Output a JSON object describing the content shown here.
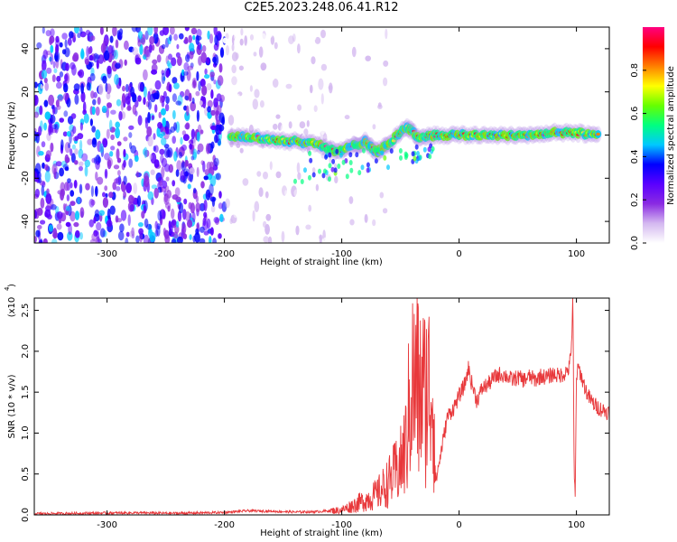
{
  "title": "C2E5.2023.248.06.41.R12",
  "chart_data": [
    {
      "type": "heatmap",
      "xlabel": "Height of straight line (km)",
      "ylabel": "Frequency (Hz)",
      "xlim": [
        -362,
        128
      ],
      "ylim": [
        -50,
        50
      ],
      "x_ticks": [
        -300,
        -200,
        -100,
        0,
        100
      ],
      "x_tick_labels": [
        "-300",
        "-200",
        "-100",
        "0",
        "100"
      ],
      "y_ticks": [
        -40,
        -20,
        0,
        20,
        40
      ],
      "y_tick_labels": [
        "-40",
        "-20",
        "0",
        "20",
        "40"
      ],
      "colorbar": {
        "label": "Normalized spectral amplitude",
        "range": [
          0,
          1
        ],
        "ticks": [
          0.0,
          0.2,
          0.4,
          0.6,
          0.8
        ],
        "tick_labels": [
          "0.0",
          "0.2",
          "0.4",
          "0.6",
          "0.8"
        ],
        "colors": [
          "#ffffff",
          "#d4b8f0",
          "#8a2be2",
          "#5a00ff",
          "#0000ff",
          "#00c8ff",
          "#00ff80",
          "#66ff00",
          "#ffff00",
          "#ff8000",
          "#ff0000",
          "#ff0080"
        ]
      },
      "regions": [
        {
          "description_x": [
            -362,
            -200
          ],
          "freq": [
            -50,
            50
          ],
          "amplitude": 0.15
        },
        {
          "description_x": [
            -200,
            -108
          ],
          "freq": [
            -50,
            50
          ],
          "amplitude": 0.05
        },
        {
          "description_x": [
            -200,
            128
          ],
          "freq": [
            -3,
            3
          ],
          "amplitude": 0.7
        }
      ],
      "band_centers": [
        [
          -195,
          0
        ],
        [
          -180,
          -1
        ],
        [
          -160,
          -2
        ],
        [
          -140,
          -3
        ],
        [
          -120,
          -4
        ],
        [
          -105,
          -8
        ],
        [
          -90,
          -5
        ],
        [
          -80,
          -3
        ],
        [
          -70,
          -8
        ],
        [
          -60,
          -4
        ],
        [
          -45,
          4
        ],
        [
          -35,
          -1
        ],
        [
          -20,
          0
        ],
        [
          0,
          0
        ],
        [
          20,
          0
        ],
        [
          40,
          0
        ],
        [
          60,
          0
        ],
        [
          80,
          1
        ],
        [
          100,
          1
        ],
        [
          120,
          0
        ]
      ]
    },
    {
      "type": "line",
      "xlabel": "Height of straight line (km)",
      "ylabel": "SNR (10 * v/v)",
      "y_exponent_label": "(x10",
      "y_exponent": "4",
      "xlim": [
        -362,
        128
      ],
      "ylim": [
        0,
        26500
      ],
      "x_ticks": [
        -300,
        -200,
        -100,
        0,
        100
      ],
      "x_tick_labels": [
        "-300",
        "-200",
        "-100",
        "0",
        "100"
      ],
      "y_ticks": [
        0,
        5000,
        10000,
        15000,
        20000,
        25000
      ],
      "y_tick_labels": [
        "0.0",
        "0.5",
        "1.0",
        "1.5",
        "2.0",
        "2.5"
      ],
      "color": "#e8383b",
      "series": [
        {
          "x": [
            -362,
            -320,
            -280,
            -240,
            -200,
            -180,
            -160,
            -140,
            -120,
            -100,
            -90,
            -80,
            -70,
            -60,
            -55,
            -50,
            -45,
            -42,
            -40,
            -38,
            -36,
            -34,
            -32,
            -30,
            -28,
            -25,
            -22,
            -20,
            -15,
            -10,
            -5,
            0,
            5,
            8,
            10,
            15,
            20,
            25,
            30,
            35,
            40,
            45,
            50,
            55,
            60,
            65,
            70,
            75,
            80,
            85,
            90,
            94,
            96,
            97,
            98,
            99,
            100,
            102,
            105,
            110,
            115,
            120,
            128
          ],
          "y": [
            150,
            200,
            250,
            200,
            300,
            500,
            450,
            350,
            400,
            600,
            1200,
            1800,
            2500,
            4000,
            5000,
            6000,
            8500,
            14000,
            16500,
            15000,
            17000,
            13500,
            16000,
            14500,
            15000,
            15500,
            15000,
            4000,
            8000,
            12000,
            13000,
            14500,
            16000,
            18000,
            16500,
            14000,
            15500,
            16000,
            16800,
            17200,
            17000,
            16500,
            16800,
            16500,
            16900,
            16500,
            17000,
            16800,
            17200,
            17000,
            17300,
            18000,
            21500,
            26500,
            5000,
            2000,
            17000,
            18000,
            16500,
            14500,
            13500,
            13000,
            12500
          ]
        }
      ]
    }
  ]
}
